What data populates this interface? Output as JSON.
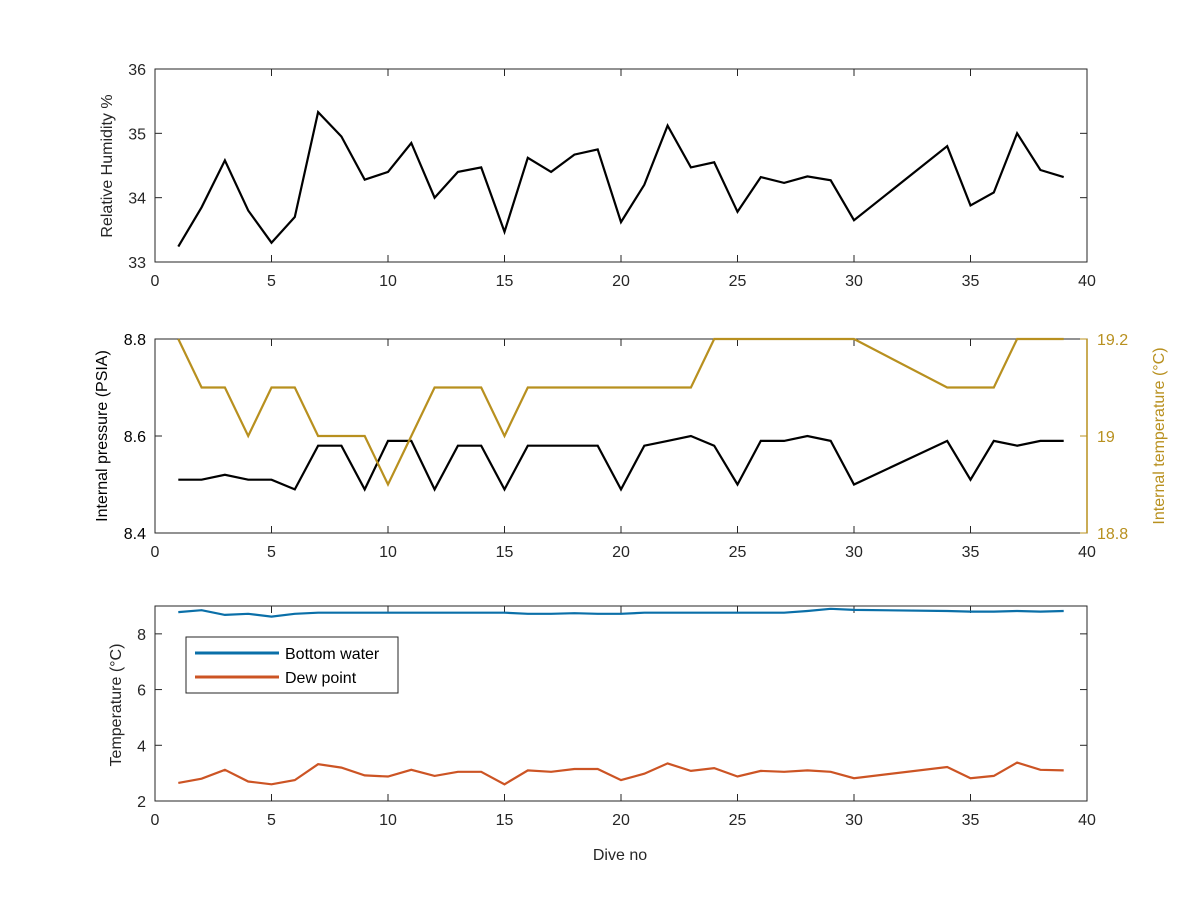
{
  "colors": {
    "black": "#000000",
    "gold": "#b8901f",
    "blue": "#0a6fa8",
    "orange": "#cc5424",
    "axis": "#262626"
  },
  "chart_data": [
    {
      "type": "line",
      "xlabel": "",
      "ylabel": "Relative Humidity %",
      "xlim": [
        0,
        40
      ],
      "ylim": [
        33,
        36
      ],
      "x_ticks": [
        "0",
        "5",
        "10",
        "15",
        "20",
        "25",
        "30",
        "35",
        "40"
      ],
      "y_ticks": [
        "33",
        "34",
        "35",
        "36"
      ],
      "legend": null,
      "series": [
        {
          "color": "#000000",
          "x": [
            1,
            2,
            3,
            4,
            5,
            6,
            7,
            8,
            9,
            10,
            11,
            12,
            13,
            14,
            15,
            16,
            17,
            18,
            19,
            20,
            21,
            22,
            23,
            24,
            25,
            26,
            27,
            28,
            29,
            30,
            34,
            35,
            36,
            37,
            38,
            39
          ],
          "y": [
            33.24,
            33.85,
            34.58,
            33.8,
            33.3,
            33.7,
            35.33,
            34.95,
            34.28,
            34.4,
            34.85,
            34.0,
            34.4,
            34.47,
            33.47,
            34.62,
            34.4,
            34.67,
            34.75,
            33.62,
            34.2,
            35.12,
            34.47,
            34.55,
            33.78,
            34.32,
            34.23,
            34.33,
            34.27,
            33.65,
            34.8,
            33.88,
            34.08,
            35.0,
            34.43,
            34.32
          ]
        }
      ]
    },
    {
      "type": "line",
      "xlabel": "",
      "ylabel": "Internal pressure (PSIA)",
      "ylabel_right": "Internal temperature (°C)",
      "xlim": [
        0,
        40
      ],
      "ylim": [
        8.4,
        8.8
      ],
      "ylim_right": [
        18.8,
        19.2
      ],
      "x_ticks": [
        "0",
        "5",
        "10",
        "15",
        "20",
        "25",
        "30",
        "35",
        "40"
      ],
      "y_ticks": [
        "8.4",
        "8.6",
        "8.8"
      ],
      "y_ticks_right": [
        "18.8",
        "19",
        "19.2"
      ],
      "legend": null,
      "series": [
        {
          "color": "#000000",
          "axis": "left",
          "x": [
            1,
            2,
            3,
            4,
            5,
            6,
            7,
            8,
            9,
            10,
            11,
            12,
            13,
            14,
            15,
            16,
            17,
            18,
            19,
            20,
            21,
            22,
            23,
            24,
            25,
            26,
            27,
            28,
            29,
            30,
            34,
            35,
            36,
            37,
            38,
            39
          ],
          "y": [
            8.51,
            8.51,
            8.52,
            8.51,
            8.51,
            8.49,
            8.58,
            8.58,
            8.49,
            8.59,
            8.59,
            8.49,
            8.58,
            8.58,
            8.49,
            8.58,
            8.58,
            8.58,
            8.58,
            8.49,
            8.58,
            8.59,
            8.6,
            8.58,
            8.5,
            8.59,
            8.59,
            8.6,
            8.59,
            8.5,
            8.59,
            8.51,
            8.59,
            8.58,
            8.59,
            8.59
          ]
        },
        {
          "color": "#b8901f",
          "axis": "right",
          "x": [
            1,
            2,
            3,
            4,
            5,
            6,
            7,
            8,
            9,
            10,
            11,
            12,
            13,
            14,
            15,
            16,
            17,
            18,
            19,
            20,
            21,
            22,
            23,
            24,
            25,
            26,
            27,
            28,
            29,
            30,
            34,
            35,
            36,
            37,
            38,
            39
          ],
          "y": [
            19.2,
            19.1,
            19.1,
            19.0,
            19.1,
            19.1,
            19.0,
            19.0,
            19.0,
            18.9,
            19.0,
            19.1,
            19.1,
            19.1,
            19.0,
            19.1,
            19.1,
            19.1,
            19.1,
            19.1,
            19.1,
            19.1,
            19.1,
            19.2,
            19.2,
            19.2,
            19.2,
            19.2,
            19.2,
            19.2,
            19.1,
            19.1,
            19.1,
            19.2,
            19.2,
            19.2
          ]
        }
      ]
    },
    {
      "type": "line",
      "xlabel": "Dive no",
      "ylabel": "Temperature (°C)",
      "xlim": [
        0,
        40
      ],
      "ylim": [
        2,
        9
      ],
      "x_ticks": [
        "0",
        "5",
        "10",
        "15",
        "20",
        "25",
        "30",
        "35",
        "40"
      ],
      "y_ticks": [
        "2",
        "4",
        "6",
        "8"
      ],
      "legend": "top-left",
      "series": [
        {
          "name": "Bottom water",
          "color": "#0a6fa8",
          "x": [
            1,
            2,
            3,
            4,
            5,
            6,
            7,
            8,
            9,
            10,
            11,
            12,
            13,
            14,
            15,
            16,
            17,
            18,
            19,
            20,
            21,
            22,
            23,
            24,
            25,
            26,
            27,
            28,
            29,
            30,
            34,
            35,
            36,
            37,
            38,
            39
          ],
          "y": [
            8.78,
            8.85,
            8.68,
            8.72,
            8.62,
            8.72,
            8.76,
            8.76,
            8.76,
            8.76,
            8.76,
            8.76,
            8.76,
            8.76,
            8.76,
            8.72,
            8.72,
            8.74,
            8.72,
            8.72,
            8.76,
            8.76,
            8.76,
            8.76,
            8.76,
            8.76,
            8.76,
            8.82,
            8.9,
            8.86,
            8.82,
            8.8,
            8.8,
            8.82,
            8.8,
            8.82
          ]
        },
        {
          "name": "Dew point",
          "color": "#cc5424",
          "x": [
            1,
            2,
            3,
            4,
            5,
            6,
            7,
            8,
            9,
            10,
            11,
            12,
            13,
            14,
            15,
            16,
            17,
            18,
            19,
            20,
            21,
            22,
            23,
            24,
            25,
            26,
            27,
            28,
            29,
            30,
            34,
            35,
            36,
            37,
            38,
            39
          ],
          "y": [
            2.65,
            2.8,
            3.12,
            2.7,
            2.6,
            2.75,
            3.32,
            3.2,
            2.92,
            2.88,
            3.12,
            2.9,
            3.05,
            3.05,
            2.6,
            3.1,
            3.05,
            3.15,
            3.15,
            2.75,
            2.98,
            3.35,
            3.08,
            3.18,
            2.88,
            3.08,
            3.05,
            3.1,
            3.05,
            2.82,
            3.22,
            2.82,
            2.9,
            3.38,
            3.12,
            3.1
          ]
        }
      ]
    }
  ]
}
